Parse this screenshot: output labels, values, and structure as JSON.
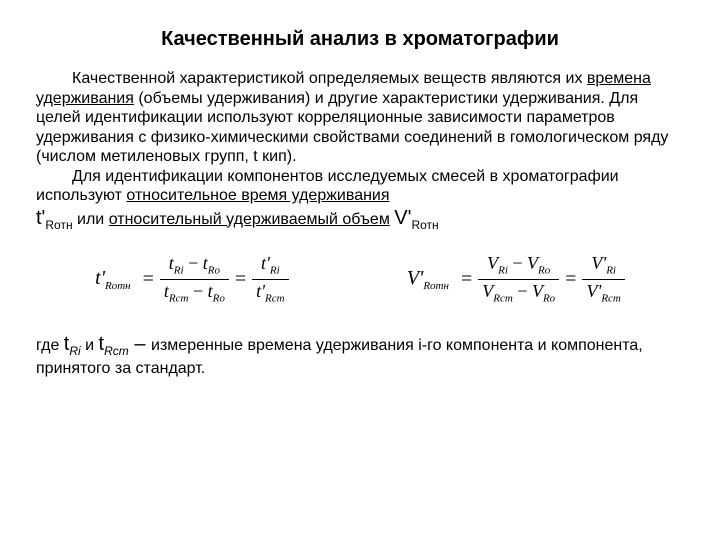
{
  "title": "Качественный анализ в хроматографии",
  "para1": {
    "s1a": "Качественной характеристикой определяемых веществ являются их ",
    "ul1": "времена удерживания",
    "s1b": " (объемы удерживания) и другие характеристики удерживания. Для целей идентификации используют корреляционные зависимости параметров удерживания с физико-химическими свойствами соединений в гомологическом ряду (числом метиленовых групп, t кип)."
  },
  "para2": {
    "s1": "Для идентификации компонентов исследуемых смесей в хроматографии используют ",
    "ul1": "относительное время удерживания",
    "var1_main": "t'",
    "var1_sub": "Rотн",
    "mid": " или ",
    "ul2": "относительный удерживаемый объем",
    "var2_main": "V'",
    "var2_sub": "Rотн"
  },
  "eq_t": {
    "lhs_main": "t'",
    "lhs_sub": "Rотн",
    "f1_num_a": "t",
    "f1_num_a_sub": "Ri",
    "f1_num_b": "t",
    "f1_num_b_sub": "Ro",
    "f1_den_a": "t",
    "f1_den_a_sub": "Rст",
    "f1_den_b": "t",
    "f1_den_b_sub": "Ro",
    "f2_num": "t'",
    "f2_num_sub": "Ri",
    "f2_den": "t'",
    "f2_den_sub": "Rст"
  },
  "eq_v": {
    "lhs_main": "V'",
    "lhs_sub": "Rотн",
    "f1_num_a": "V",
    "f1_num_a_sub": "Ri",
    "f1_num_b": "V",
    "f1_num_b_sub": "Ro",
    "f1_den_a": "V",
    "f1_den_a_sub": "Rст",
    "f1_den_b": "V",
    "f1_den_b_sub": "Ro",
    "f2_num": "V'",
    "f2_num_sub": "Ri",
    "f2_den": "V'",
    "f2_den_sub": "Rст"
  },
  "footer": {
    "pre": "где ",
    "v1_main": "t",
    "v1_sub": "Ri",
    "and": " и ",
    "v2_main": "t",
    "v2_sub": "Rст",
    "dash": " – ",
    "tail": "измеренные времена удерживания i-го компонента и компонента, принятого за стандарт."
  }
}
